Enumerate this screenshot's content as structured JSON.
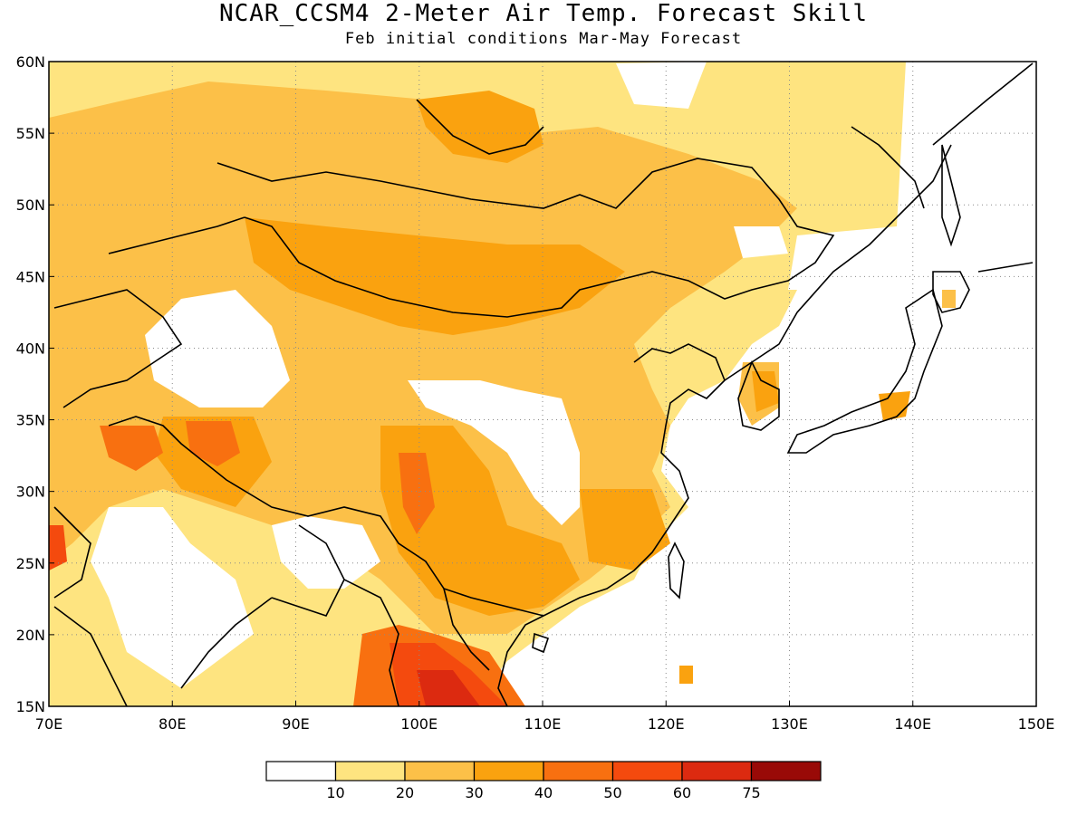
{
  "title": "NCAR_CCSM4 2-Meter Air Temp. Forecast Skill",
  "subtitle": "Feb initial conditions  Mar-May Forecast",
  "map": {
    "projection": "lat-lon",
    "lon_range": [
      70,
      150
    ],
    "lat_range": [
      15,
      60
    ],
    "gridlines": "dotted",
    "lon_ticks": [
      "70E",
      "80E",
      "90E",
      "100E",
      "110E",
      "120E",
      "130E",
      "140E",
      "150E"
    ],
    "lat_ticks": [
      "60N",
      "55N",
      "50N",
      "45N",
      "40N",
      "35N",
      "30N",
      "25N",
      "20N",
      "15N"
    ]
  },
  "colorbar": {
    "colors": [
      "#ffffff",
      "#fee480",
      "#fcc048",
      "#faa20f",
      "#f87010",
      "#f44a0e",
      "#dc2a10",
      "#990a07"
    ],
    "labels": [
      "10",
      "20",
      "30",
      "40",
      "50",
      "60",
      "75"
    ]
  }
}
